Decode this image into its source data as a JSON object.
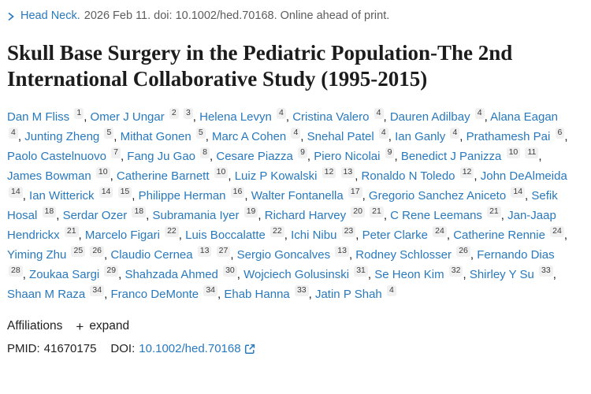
{
  "journal_line": {
    "journal": "Head Neck.",
    "citation": "2026 Feb 11. doi: 10.1002/hed.70168. Online ahead of print."
  },
  "title": "Skull Base Surgery in the Pediatric Population-The 2nd International Collaborative Study (1995-2015)",
  "authors": [
    {
      "name": "Dan M Fliss",
      "sups": [
        "1"
      ]
    },
    {
      "name": "Omer J Ungar",
      "sups": [
        "2",
        "3"
      ]
    },
    {
      "name": "Helena Levyn",
      "sups": [
        "4"
      ]
    },
    {
      "name": "Cristina Valero",
      "sups": [
        "4"
      ]
    },
    {
      "name": "Dauren Adilbay",
      "sups": [
        "4"
      ]
    },
    {
      "name": "Alana Eagan",
      "sups": [
        "4"
      ]
    },
    {
      "name": "Junting Zheng",
      "sups": [
        "5"
      ]
    },
    {
      "name": "Mithat Gonen",
      "sups": [
        "5"
      ]
    },
    {
      "name": "Marc A Cohen",
      "sups": [
        "4"
      ]
    },
    {
      "name": "Snehal Patel",
      "sups": [
        "4"
      ]
    },
    {
      "name": "Ian Ganly",
      "sups": [
        "4"
      ]
    },
    {
      "name": "Prathamesh Pai",
      "sups": [
        "6"
      ]
    },
    {
      "name": "Paolo Castelnuovo",
      "sups": [
        "7"
      ]
    },
    {
      "name": "Fang Ju Gao",
      "sups": [
        "8"
      ]
    },
    {
      "name": "Cesare Piazza",
      "sups": [
        "9"
      ]
    },
    {
      "name": "Piero Nicolai",
      "sups": [
        "9"
      ]
    },
    {
      "name": "Benedict J Panizza",
      "sups": [
        "10",
        "11"
      ]
    },
    {
      "name": "James Bowman",
      "sups": [
        "10"
      ]
    },
    {
      "name": "Catherine Barnett",
      "sups": [
        "10"
      ]
    },
    {
      "name": "Luiz P Kowalski",
      "sups": [
        "12",
        "13"
      ]
    },
    {
      "name": "Ronaldo N Toledo",
      "sups": [
        "12"
      ]
    },
    {
      "name": "John DeAlmeida",
      "sups": [
        "14"
      ]
    },
    {
      "name": "Ian Witterick",
      "sups": [
        "14",
        "15"
      ]
    },
    {
      "name": "Philippe Herman",
      "sups": [
        "16"
      ]
    },
    {
      "name": "Walter Fontanella",
      "sups": [
        "17"
      ]
    },
    {
      "name": "Gregorio Sanchez Aniceto",
      "sups": [
        "14"
      ]
    },
    {
      "name": "Sefik Hosal",
      "sups": [
        "18"
      ]
    },
    {
      "name": "Serdar Ozer",
      "sups": [
        "18"
      ]
    },
    {
      "name": "Subramania Iyer",
      "sups": [
        "19"
      ]
    },
    {
      "name": "Richard Harvey",
      "sups": [
        "20",
        "21"
      ]
    },
    {
      "name": "C Rene Leemans",
      "sups": [
        "21"
      ]
    },
    {
      "name": "Jan-Jaap Hendrickx",
      "sups": [
        "21"
      ]
    },
    {
      "name": "Marcelo Figari",
      "sups": [
        "22"
      ]
    },
    {
      "name": "Luis Boccalatte",
      "sups": [
        "22"
      ]
    },
    {
      "name": "Ichi Nibu",
      "sups": [
        "23"
      ]
    },
    {
      "name": "Peter Clarke",
      "sups": [
        "24"
      ]
    },
    {
      "name": "Catherine Rennie",
      "sups": [
        "24"
      ]
    },
    {
      "name": "Yiming Zhu",
      "sups": [
        "25",
        "26"
      ]
    },
    {
      "name": "Claudio Cernea",
      "sups": [
        "13",
        "27"
      ]
    },
    {
      "name": "Sergio Goncalves",
      "sups": [
        "13"
      ]
    },
    {
      "name": "Rodney Schlosser",
      "sups": [
        "26"
      ]
    },
    {
      "name": "Fernando Dias",
      "sups": [
        "28"
      ]
    },
    {
      "name": "Zoukaa Sargi",
      "sups": [
        "29"
      ]
    },
    {
      "name": "Shahzada Ahmed",
      "sups": [
        "30"
      ]
    },
    {
      "name": "Wojciech Golusinski",
      "sups": [
        "31"
      ]
    },
    {
      "name": "Se Heon Kim",
      "sups": [
        "32"
      ]
    },
    {
      "name": "Shirley Y Su",
      "sups": [
        "33"
      ]
    },
    {
      "name": "Shaan M Raza",
      "sups": [
        "34"
      ]
    },
    {
      "name": "Franco DeMonte",
      "sups": [
        "34"
      ]
    },
    {
      "name": "Ehab Hanna",
      "sups": [
        "33"
      ]
    },
    {
      "name": "Jatin P Shah",
      "sups": [
        "4"
      ]
    }
  ],
  "affiliations": {
    "label": "Affiliations",
    "plus_glyph": "+",
    "expand_label": "expand"
  },
  "identifiers": {
    "pmid_label": "PMID:",
    "pmid_value": "41670175",
    "doi_label": "DOI:",
    "doi_link": "10.1002/hed.70168"
  },
  "colors": {
    "link_blue": "#2979bd",
    "muted_gray": "#5d5d5d",
    "badge_bg": "#f0f0f0",
    "title_color": "#1c1c1c"
  }
}
